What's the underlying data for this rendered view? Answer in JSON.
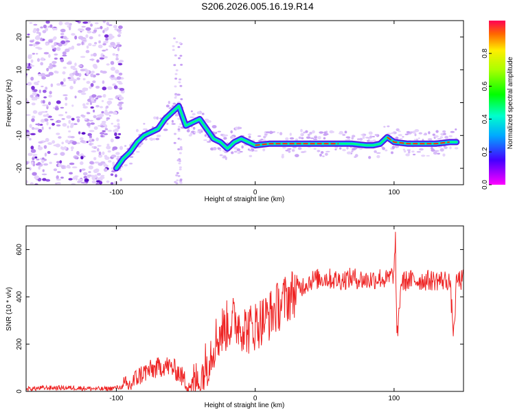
{
  "title": "S206.2026.005.16.19.R14",
  "chart_data": [
    {
      "type": "heatmap",
      "xlabel": "Height of straight line (km)",
      "ylabel": "Frequency (Hz)",
      "xlim": [
        -165,
        150
      ],
      "ylim": [
        -25,
        25
      ],
      "xticks": [
        -100,
        0,
        100
      ],
      "yticks": [
        -20,
        -10,
        0,
        10,
        20
      ],
      "ridge": {
        "x": [
          -100,
          -95,
          -90,
          -85,
          -80,
          -75,
          -70,
          -65,
          -60,
          -55,
          -50,
          -45,
          -40,
          -35,
          -30,
          -25,
          -20,
          -15,
          -10,
          -5,
          0,
          10,
          20,
          30,
          40,
          50,
          60,
          70,
          80,
          85,
          90,
          95,
          100,
          110,
          120,
          130,
          140,
          145
        ],
        "y": [
          -20,
          -17,
          -15,
          -12,
          -10,
          -9,
          -8,
          -5,
          -3,
          -1,
          -7,
          -6,
          -5,
          -8,
          -11,
          -12,
          -14,
          -12,
          -11,
          -12,
          -13,
          -12.5,
          -12.5,
          -12.5,
          -12.5,
          -12.5,
          -12.5,
          -12.5,
          -13,
          -13,
          -12.5,
          -10.5,
          -12,
          -12.5,
          -12.5,
          -12.5,
          -12,
          -12
        ]
      },
      "colorbar": {
        "label": "Normalized spectral amplitude",
        "ticks": [
          "0.0",
          "0.2",
          "0.4",
          "0.6",
          "0.8"
        ],
        "range": [
          0,
          1
        ]
      }
    },
    {
      "type": "line",
      "xlabel": "Height of straight line (km)",
      "ylabel": "SNR (10 * v/v)",
      "xlim": [
        -165,
        150
      ],
      "ylim": [
        0,
        700
      ],
      "xticks": [
        -100,
        0,
        100
      ],
      "yticks": [
        0,
        200,
        400,
        600
      ],
      "color": "#ee2222",
      "series": {
        "x": [
          -165,
          -150,
          -130,
          -110,
          -100,
          -90,
          -85,
          -80,
          -75,
          -70,
          -65,
          -60,
          -55,
          -50,
          -45,
          -40,
          -35,
          -30,
          -25,
          -20,
          -15,
          -10,
          -5,
          0,
          10,
          20,
          30,
          40,
          50,
          60,
          70,
          80,
          90,
          95,
          100,
          101,
          102,
          105,
          110,
          120,
          130,
          140,
          143,
          145,
          150
        ],
        "y": [
          10,
          15,
          15,
          10,
          15,
          25,
          60,
          80,
          90,
          100,
          110,
          100,
          80,
          40,
          20,
          40,
          120,
          200,
          250,
          280,
          300,
          280,
          260,
          280,
          320,
          380,
          430,
          470,
          480,
          470,
          480,
          470,
          480,
          470,
          500,
          650,
          200,
          460,
          470,
          470,
          470,
          470,
          240,
          470,
          470
        ]
      }
    }
  ]
}
